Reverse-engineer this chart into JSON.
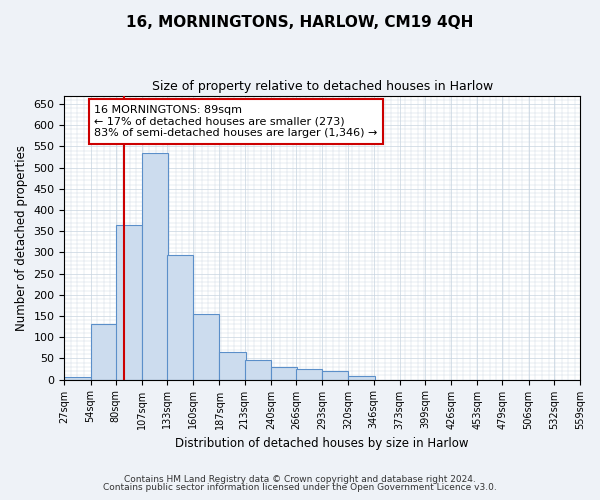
{
  "title": "16, MORNINGTONS, HARLOW, CM19 4QH",
  "subtitle": "Size of property relative to detached houses in Harlow",
  "xlabel": "Distribution of detached houses by size in Harlow",
  "ylabel": "Number of detached properties",
  "bin_edges": [
    27,
    54,
    80,
    107,
    133,
    160,
    187,
    213,
    240,
    266,
    293,
    320,
    346,
    373,
    399,
    426,
    453,
    479,
    506,
    532,
    559
  ],
  "bar_heights": [
    5,
    130,
    365,
    535,
    295,
    155,
    65,
    45,
    30,
    25,
    20,
    8,
    0,
    0,
    0,
    0,
    0,
    0,
    0,
    0
  ],
  "bar_color": "#ccdcee",
  "bar_edge_color": "#5b8fc9",
  "property_size": 89,
  "vline_color": "#cc0000",
  "annotation_text": "16 MORNINGTONS: 89sqm\n← 17% of detached houses are smaller (273)\n83% of semi-detached houses are larger (1,346) →",
  "annotation_box_color": "#ffffff",
  "annotation_box_edge_color": "#cc0000",
  "ylim": [
    0,
    670
  ],
  "yticks": [
    0,
    50,
    100,
    150,
    200,
    250,
    300,
    350,
    400,
    450,
    500,
    550,
    600,
    650
  ],
  "footer_line1": "Contains HM Land Registry data © Crown copyright and database right 2024.",
  "footer_line2": "Contains public sector information licensed under the Open Government Licence v3.0.",
  "background_color": "#eef2f7",
  "plot_bg_color": "#ffffff",
  "grid_color": "#c8d4e0",
  "title_fontsize": 11,
  "subtitle_fontsize": 9,
  "annotation_fontsize": 8
}
